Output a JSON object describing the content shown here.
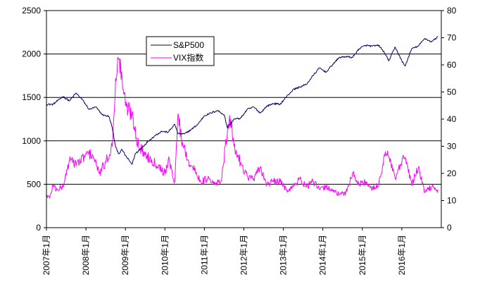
{
  "chart_data": {
    "type": "line",
    "title": "",
    "xlabel": "",
    "ylabel": "",
    "y2label": "",
    "ylim": [
      0,
      2500
    ],
    "y2lim": [
      0,
      80
    ],
    "yticks": [
      0,
      500,
      1000,
      1500,
      2000,
      2500
    ],
    "y2ticks": [
      0,
      10,
      20,
      30,
      40,
      50,
      60,
      70,
      80
    ],
    "xlim": [
      "2007-01",
      "2016-12"
    ],
    "xtick_labels": [
      "2007年1月",
      "2008年1月",
      "2009年1月",
      "2010年1月",
      "2011年1月",
      "2012年1月",
      "2013年1月",
      "2014年1月",
      "2015年1月",
      "2016年1月"
    ],
    "grid": "horizontal",
    "legend_position": "top-center",
    "series": [
      {
        "name": "S&P500",
        "axis": "left",
        "color": "#000066",
        "x": [
          "2007-01",
          "2007-03",
          "2007-06",
          "2007-08",
          "2007-10",
          "2007-12",
          "2008-02",
          "2008-04",
          "2008-06",
          "2008-08",
          "2008-09",
          "2008-10",
          "2008-11",
          "2008-12",
          "2009-01",
          "2009-03",
          "2009-04",
          "2009-06",
          "2009-08",
          "2009-10",
          "2009-12",
          "2010-02",
          "2010-04",
          "2010-05",
          "2010-07",
          "2010-09",
          "2010-11",
          "2011-01",
          "2011-03",
          "2011-05",
          "2011-07",
          "2011-08",
          "2011-10",
          "2011-12",
          "2012-02",
          "2012-04",
          "2012-06",
          "2012-08",
          "2012-10",
          "2012-12",
          "2013-02",
          "2013-04",
          "2013-06",
          "2013-08",
          "2013-10",
          "2013-12",
          "2014-02",
          "2014-04",
          "2014-06",
          "2014-08",
          "2014-10",
          "2014-12",
          "2015-02",
          "2015-04",
          "2015-06",
          "2015-08",
          "2015-09",
          "2015-11",
          "2016-01",
          "2016-02",
          "2016-04",
          "2016-06",
          "2016-08",
          "2016-10",
          "2016-12"
        ],
        "values": [
          1420,
          1420,
          1510,
          1460,
          1550,
          1470,
          1360,
          1390,
          1300,
          1280,
          1150,
          930,
          850,
          900,
          830,
          730,
          850,
          920,
          1000,
          1060,
          1110,
          1100,
          1190,
          1080,
          1080,
          1130,
          1190,
          1290,
          1320,
          1350,
          1300,
          1150,
          1250,
          1260,
          1360,
          1390,
          1320,
          1400,
          1430,
          1420,
          1510,
          1590,
          1620,
          1650,
          1750,
          1840,
          1790,
          1880,
          1960,
          1970,
          1960,
          2060,
          2100,
          2090,
          2100,
          2000,
          1920,
          2080,
          1920,
          1860,
          2060,
          2090,
          2180,
          2140,
          2200
        ]
      },
      {
        "name": "VIX指数",
        "axis": "right",
        "color": "#ff00ff",
        "x": [
          "2007-01",
          "2007-02",
          "2007-03",
          "2007-04",
          "2007-06",
          "2007-08",
          "2007-09",
          "2007-11",
          "2008-01",
          "2008-03",
          "2008-05",
          "2008-07",
          "2008-09",
          "2008-10",
          "2008-11",
          "2008-12",
          "2009-01",
          "2009-03",
          "2009-05",
          "2009-07",
          "2009-09",
          "2009-11",
          "2010-01",
          "2010-02",
          "2010-04",
          "2010-05",
          "2010-06",
          "2010-08",
          "2010-10",
          "2010-12",
          "2011-02",
          "2011-04",
          "2011-06",
          "2011-08",
          "2011-09",
          "2011-10",
          "2011-12",
          "2012-02",
          "2012-04",
          "2012-06",
          "2012-08",
          "2012-10",
          "2012-12",
          "2013-02",
          "2013-04",
          "2013-06",
          "2013-08",
          "2013-10",
          "2013-12",
          "2014-02",
          "2014-04",
          "2014-06",
          "2014-08",
          "2014-10",
          "2014-12",
          "2015-02",
          "2015-04",
          "2015-06",
          "2015-08",
          "2015-09",
          "2015-11",
          "2016-01",
          "2016-02",
          "2016-04",
          "2016-06",
          "2016-08",
          "2016-10",
          "2016-12"
        ],
        "values": [
          12,
          11,
          16,
          14,
          15,
          25,
          24,
          24,
          27,
          27,
          20,
          24,
          30,
          55,
          62,
          55,
          45,
          42,
          30,
          27,
          25,
          23,
          20,
          25,
          17,
          42,
          33,
          25,
          21,
          17,
          18,
          16,
          17,
          35,
          40,
          30,
          24,
          19,
          18,
          22,
          16,
          17,
          17,
          14,
          15,
          18,
          15,
          17,
          14,
          15,
          14,
          12,
          13,
          20,
          16,
          17,
          14,
          16,
          28,
          26,
          18,
          24,
          26,
          16,
          22,
          13,
          15,
          14
        ]
      }
    ]
  }
}
